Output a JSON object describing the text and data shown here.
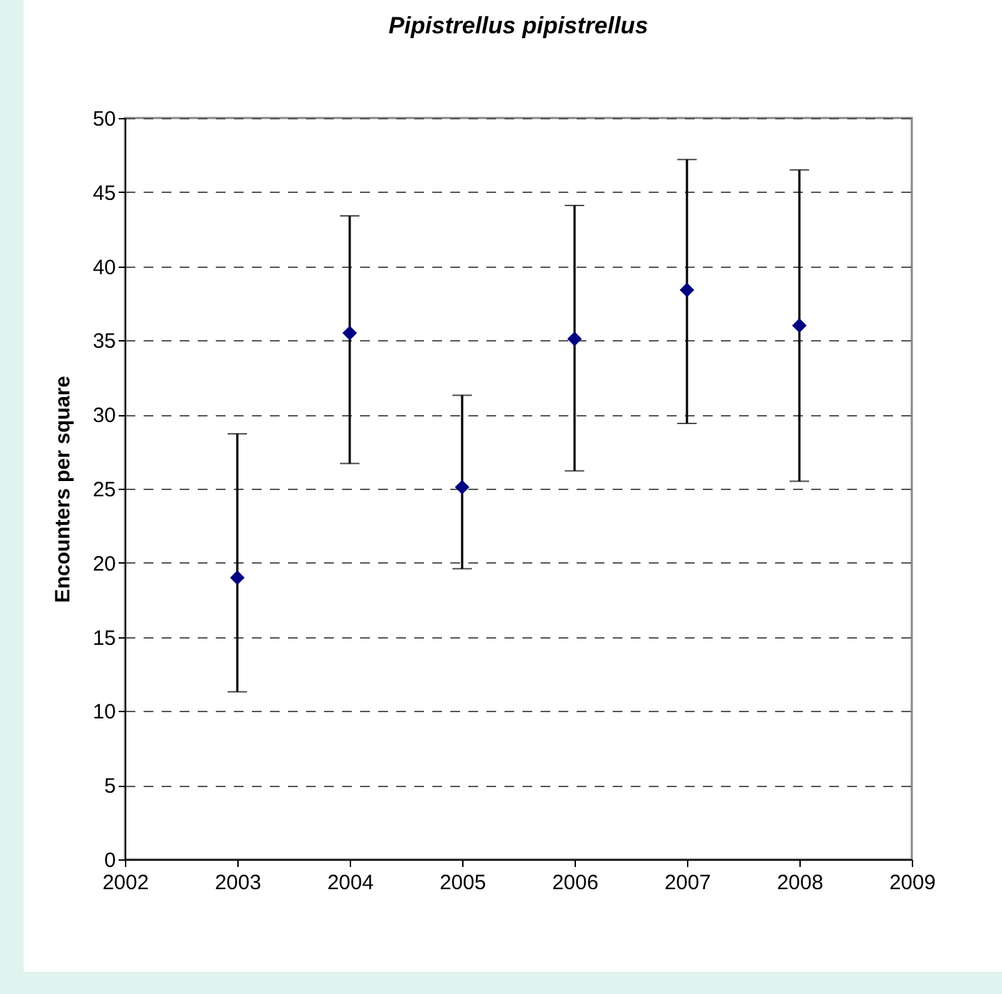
{
  "chart_data": {
    "type": "scatter",
    "title": "Pipistrellus pipistrellus",
    "ylabel": "Encounters per square",
    "x": [
      2003,
      2004,
      2005,
      2006,
      2007,
      2008
    ],
    "series": [
      {
        "color": "#000080",
        "values": [
          19.0,
          35.5,
          25.1,
          35.1,
          38.4,
          36.0
        ],
        "errors": [
          [
            11.3,
            28.7
          ],
          [
            26.7,
            43.4
          ],
          [
            19.6,
            31.3
          ],
          [
            26.2,
            44.1
          ],
          [
            29.4,
            47.2
          ],
          [
            25.5,
            46.5
          ]
        ]
      }
    ],
    "xlim": [
      2002,
      2009
    ],
    "xticks": [
      2002,
      2003,
      2004,
      2005,
      2006,
      2007,
      2008,
      2009
    ],
    "ylim": [
      0,
      50
    ],
    "yticks": [
      0,
      5,
      10,
      15,
      20,
      25,
      30,
      35,
      40,
      45,
      50
    ],
    "grid": "y",
    "marker": "diamond"
  }
}
